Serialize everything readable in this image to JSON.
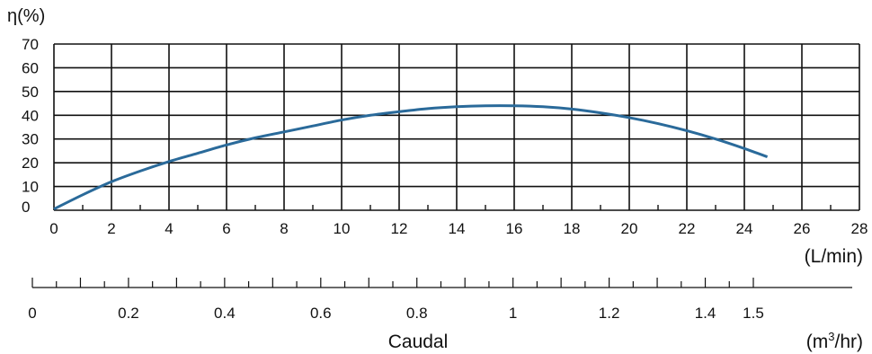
{
  "chart_data": {
    "type": "line",
    "ylabel": "η(%)",
    "xunit": "(L/min)",
    "ylim": [
      0,
      70
    ],
    "xlim": [
      0,
      28
    ],
    "y_ticks": [
      "0",
      "10",
      "20",
      "30",
      "40",
      "50",
      "60",
      "70"
    ],
    "x_ticks": [
      "0",
      "2",
      "4",
      "6",
      "8",
      "10",
      "12",
      "14",
      "16",
      "18",
      "20",
      "22",
      "24",
      "26",
      "28"
    ],
    "grid": true,
    "series": [
      {
        "color": "#2a6a9a",
        "x": [
          0,
          1,
          2,
          3,
          4,
          5,
          6,
          7,
          8,
          9,
          10,
          11,
          12,
          13,
          14,
          15,
          16,
          17,
          18,
          19,
          20,
          21,
          22,
          23,
          24,
          24.8
        ],
        "y": [
          0.5,
          6.5,
          12,
          16.5,
          20.5,
          24,
          27.5,
          30.5,
          33,
          35.5,
          38,
          40,
          41.5,
          42.8,
          43.6,
          44,
          44,
          43.6,
          42.6,
          41,
          39,
          36.5,
          33.5,
          30,
          26,
          22.5
        ]
      }
    ],
    "secondary_axis": {
      "label": "Caudal",
      "unit_prefix": "(m",
      "unit_sup": "3",
      "unit_suffix": "/hr)",
      "ticks": [
        "0",
        "0.2",
        "0.4",
        "0.6",
        "0.8",
        "1",
        "1.2",
        "1.4",
        "1.5"
      ],
      "tick_values": [
        0,
        0.2,
        0.4,
        0.6,
        0.8,
        1,
        1.2,
        1.4,
        1.5
      ]
    }
  }
}
